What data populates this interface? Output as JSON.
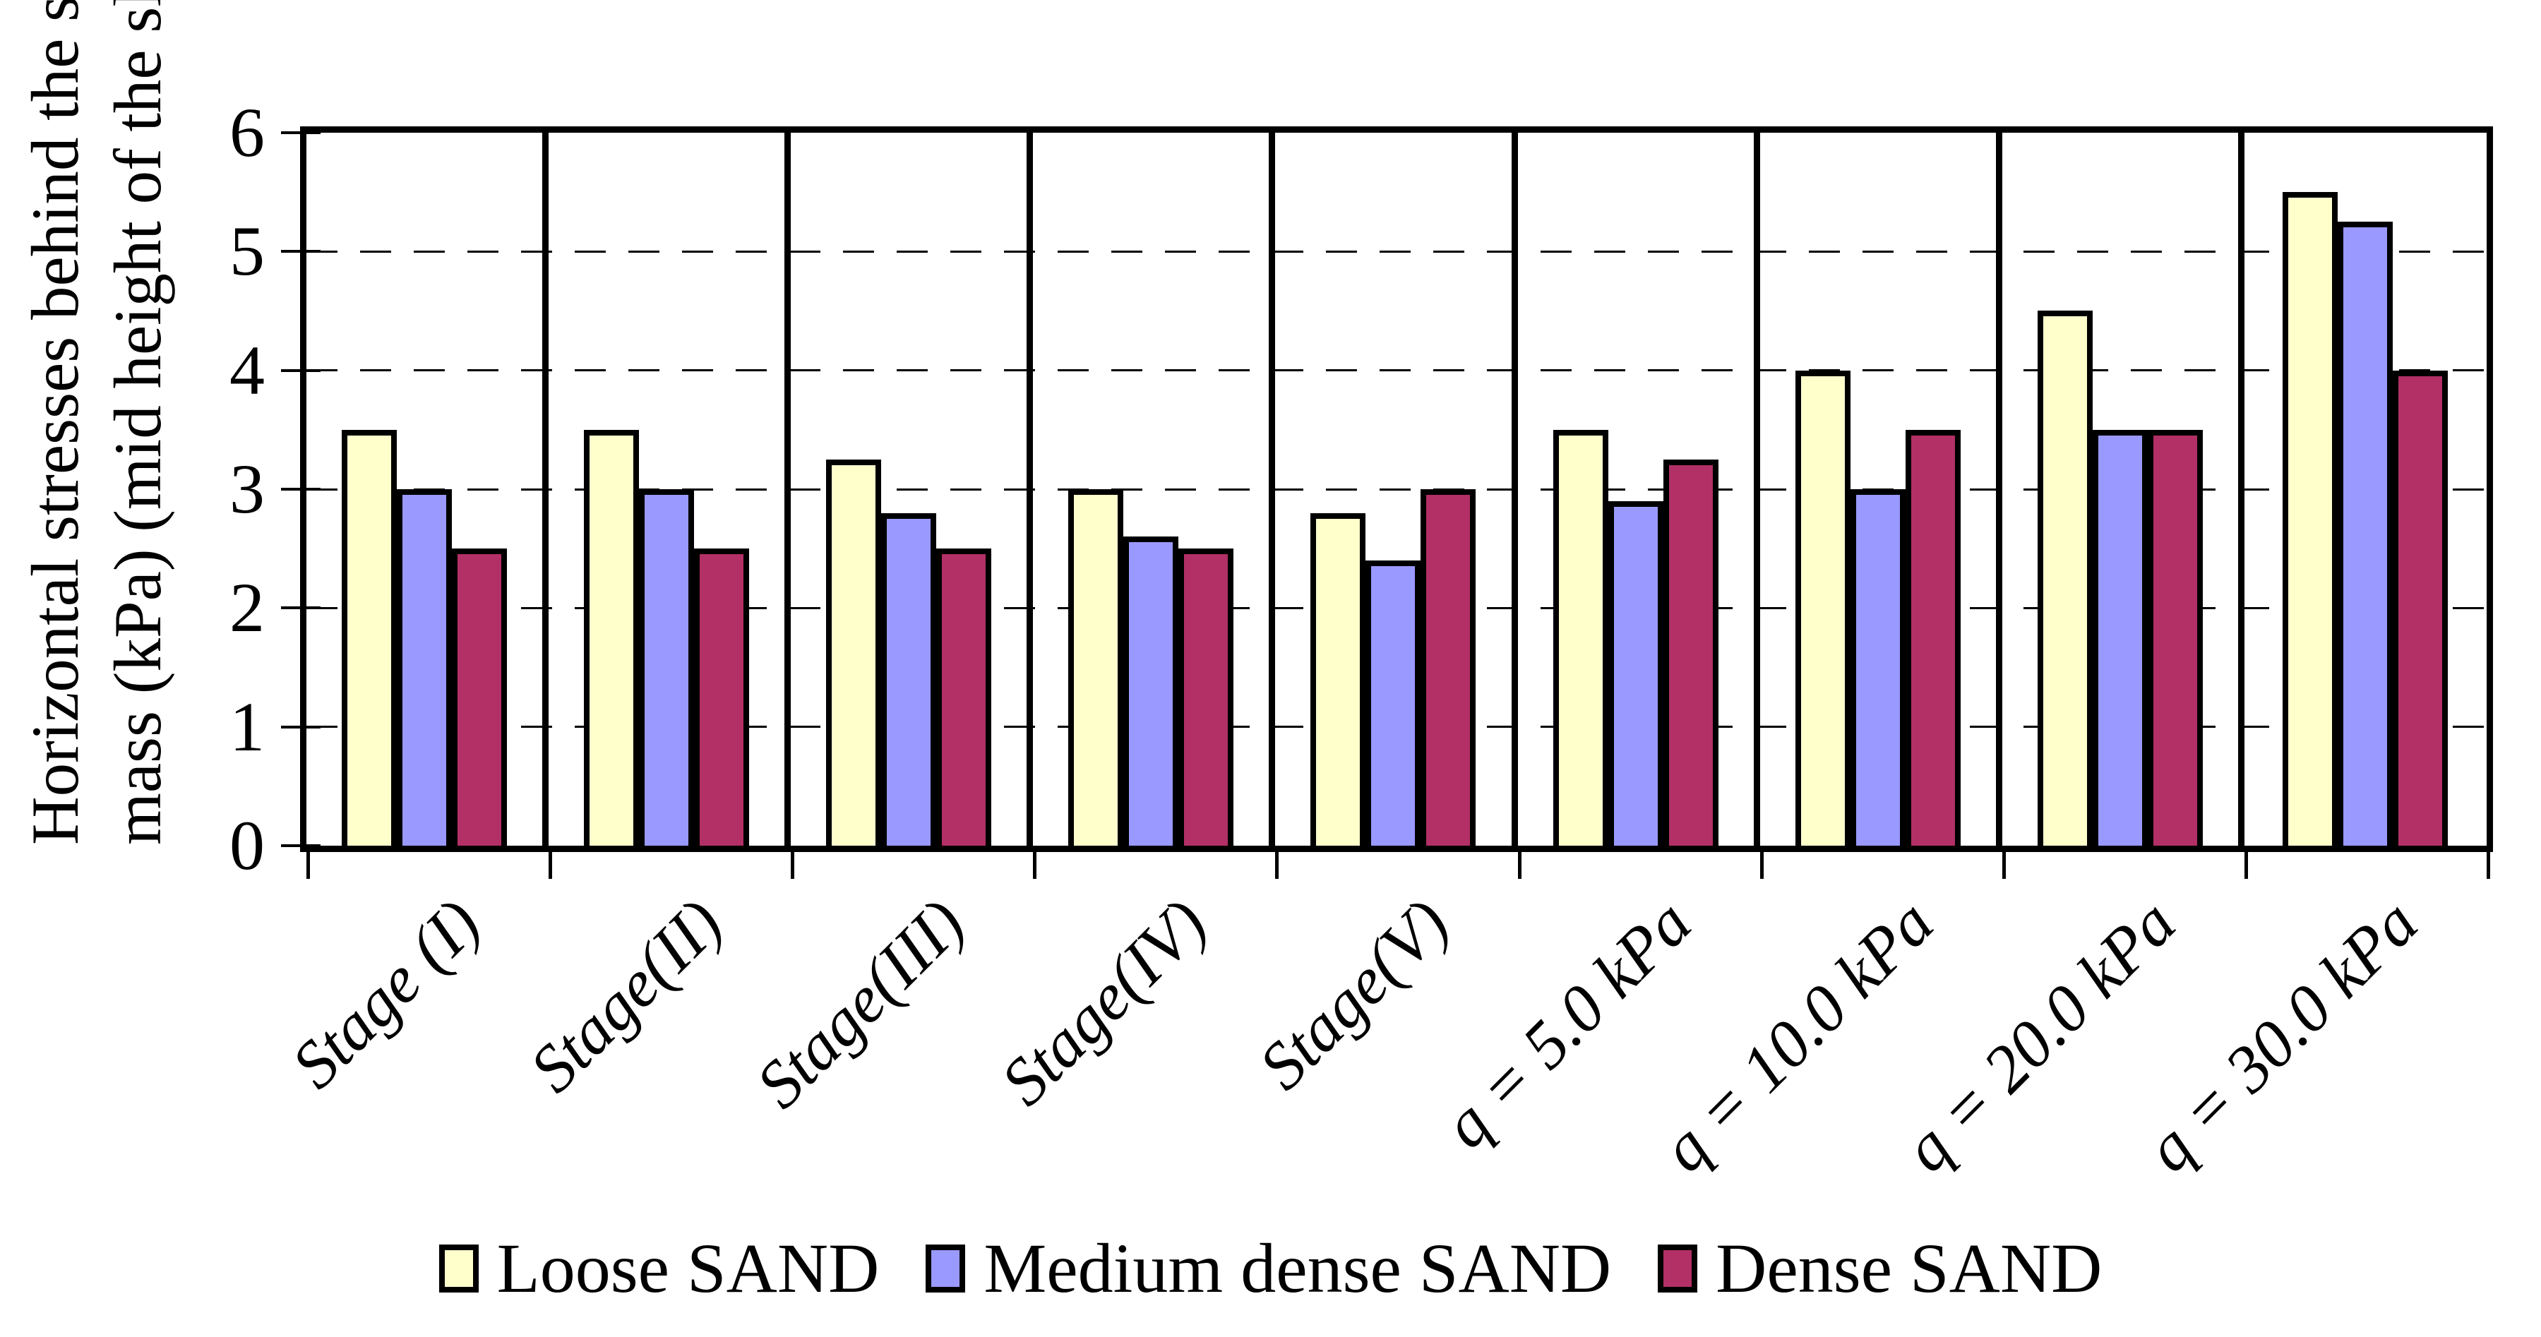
{
  "chart_data": {
    "type": "bar",
    "title": "",
    "ylabel_line1": "Horizontal stresses behind the soil",
    "ylabel_line2": "mass (kPa) (mid height of the slope",
    "xlabel": "",
    "ylim": [
      0,
      6
    ],
    "yticks": [
      0,
      1,
      2,
      3,
      4,
      5,
      6
    ],
    "grid": "horizontal-dashed",
    "legend_position": "bottom",
    "categories": [
      "Stage (I)",
      "Stage(II)",
      "Stage(III)",
      "Stage(IV)",
      "Stage(V)",
      "q = 5.0 kPa",
      "q = 10.0 kPa",
      "q = 20.0 kPa",
      "q = 30.0 kPa"
    ],
    "series": [
      {
        "name": "Loose SAND",
        "color": "#FFFFCC",
        "values": [
          3.5,
          3.5,
          3.25,
          3.0,
          2.8,
          3.5,
          4.0,
          4.5,
          5.5
        ]
      },
      {
        "name": "Medium dense SAND",
        "color": "#9999FF",
        "values": [
          3.0,
          3.0,
          2.8,
          2.6,
          2.4,
          2.9,
          3.0,
          3.5,
          5.25
        ]
      },
      {
        "name": "Dense SAND",
        "color": "#B23066",
        "values": [
          2.5,
          2.5,
          2.5,
          2.5,
          3.0,
          3.25,
          3.5,
          3.5,
          4.0
        ]
      }
    ],
    "axis_color": "#000000",
    "background_color": "#FFFFFF"
  }
}
